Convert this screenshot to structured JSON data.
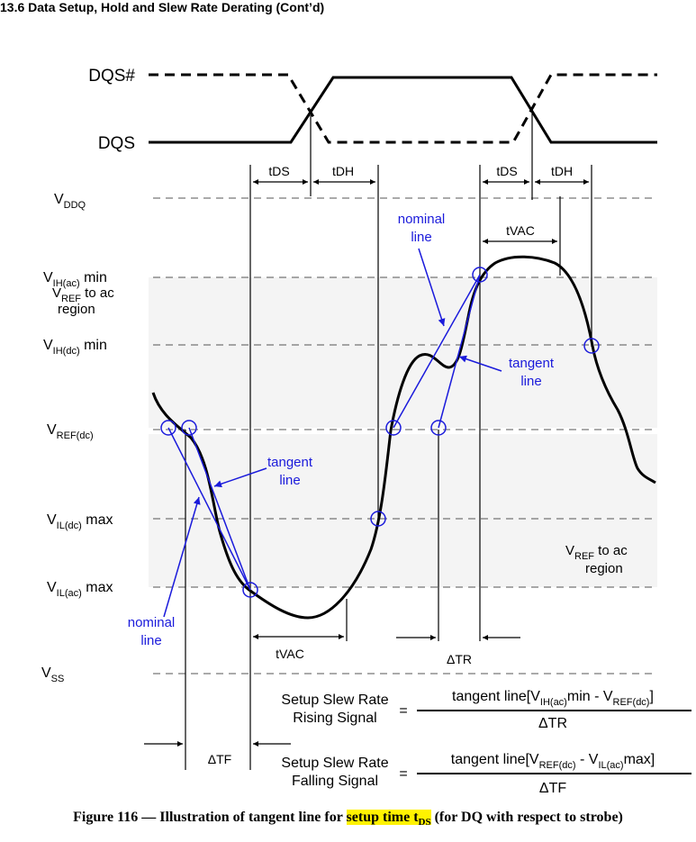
{
  "heading": "13.6 Data Setup, Hold and Slew Rate Derating (Cont’d)",
  "signals": {
    "dqs_bar": "DQS#",
    "dqs": "DQS"
  },
  "timing": {
    "tds": "tDS",
    "tdh": "tDH",
    "tvac": "tVAC",
    "delta_tr": "ΔTR",
    "delta_tf": "ΔTF"
  },
  "levels": {
    "vddq": {
      "main": "V",
      "sub": "DDQ",
      "suffix": ""
    },
    "vih_ac": {
      "main": "V",
      "sub": "IH(ac)",
      "suffix": " min"
    },
    "vih_dc": {
      "main": "V",
      "sub": "IH(dc)",
      "suffix": " min"
    },
    "vref_dc": {
      "main": "V",
      "sub": "REF(dc)",
      "suffix": ""
    },
    "vil_dc": {
      "main": "V",
      "sub": "IL(dc)",
      "suffix": " max"
    },
    "vil_ac": {
      "main": "V",
      "sub": "IL(ac)",
      "suffix": " max"
    },
    "vss": {
      "main": "V",
      "sub": "SS",
      "suffix": ""
    }
  },
  "regions": {
    "upper_line1_main": "V",
    "upper_line1_sub": "REF",
    "upper_line1_suffix": " to ac",
    "upper_line2": "region",
    "lower_line1_main": "V",
    "lower_line1_sub": "REF",
    "lower_line1_suffix": " to ac",
    "lower_line2": "region"
  },
  "annotations": {
    "nominal_top_1": "nominal",
    "nominal_top_2": "line",
    "tangent_top_1": "tangent",
    "tangent_top_2": "line",
    "tangent_bottom_1": "tangent",
    "tangent_bottom_2": "line",
    "nominal_bottom_1": "nominal",
    "nominal_bottom_2": "line"
  },
  "formulas": {
    "rising": {
      "label_1": "Setup Slew Rate",
      "label_2": "Rising Signal",
      "equals": "=",
      "num_pre": "tangent line[V",
      "num_sub1": "IH(ac)",
      "num_mid": "min - V",
      "num_sub2": "REF(dc)",
      "num_post": "]",
      "den": "ΔTR"
    },
    "falling": {
      "label_1": "Setup Slew Rate",
      "label_2": "Falling Signal",
      "equals": "=",
      "num_pre": "tangent line[V",
      "num_sub1": "REF(dc)",
      "num_mid": " - V",
      "num_sub2": "IL(ac)",
      "num_post": "max]",
      "den": "ΔTF"
    }
  },
  "caption": {
    "pre": "Figure 116 — Illustration of tangent line for ",
    "hl_main": "setup time t",
    "hl_sub": "DS",
    "post": " (for DQ with respect to strobe)"
  },
  "colors": {
    "annotation": "#1a1adb",
    "region_fill": "#f4f4f4",
    "highlight": "#fff200"
  }
}
